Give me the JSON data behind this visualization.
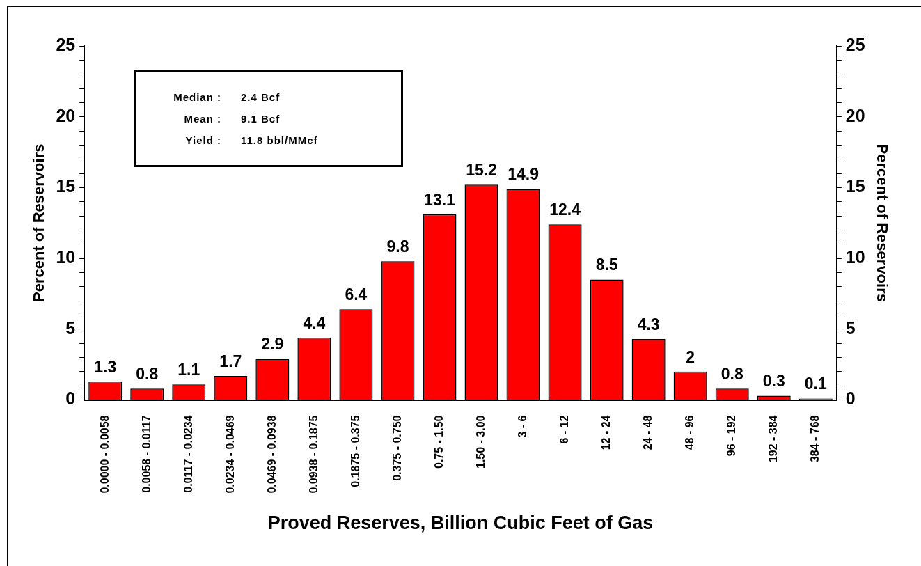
{
  "chart_data": {
    "type": "bar",
    "categories": [
      "0.0000 - 0.0058",
      "0.0058 - 0.0117",
      "0.0117 - 0.0234",
      "0.0234 - 0.0469",
      "0.0469 - 0.0938",
      "0.0938 - 0.1875",
      "0.1875 - 0.375",
      "0.375 - 0.750",
      "0.75 - 1.50",
      "1.50 - 3.00",
      "3 - 6",
      "6 - 12",
      "12 - 24",
      "24 - 48",
      "48 - 96",
      "96 - 192",
      "192 - 384",
      "384 - 768"
    ],
    "values": [
      1.3,
      0.8,
      1.1,
      1.7,
      2.9,
      4.4,
      6.4,
      9.8,
      13.1,
      15.2,
      14.9,
      12.4,
      8.5,
      4.3,
      2,
      0.8,
      0.3,
      0.1
    ],
    "color": "#ff0000",
    "data_labels": true,
    "xlabel": "Proved Reserves, Billion Cubic Feet of Gas",
    "ylabel": "Percent of Reservoirs",
    "y2label": "Percent of Reservoirs",
    "ylim": [
      0,
      25
    ],
    "yticks": [
      0,
      {
        "value": 1,
        "label": null
      },
      {
        "value": 2,
        "label": null
      },
      {
        "value": 3,
        "label": null
      },
      {
        "value": 4,
        "label": null
      },
      5,
      {
        "value": 6,
        "label": null
      },
      {
        "value": 7,
        "label": null
      },
      {
        "value": 8,
        "label": null
      },
      {
        "value": 9,
        "label": null
      },
      10,
      {
        "value": 11,
        "label": null
      },
      {
        "value": 12,
        "label": null
      },
      {
        "value": 13,
        "label": null
      },
      {
        "value": 14,
        "label": null
      },
      15,
      {
        "value": 16,
        "label": null
      },
      {
        "value": 17,
        "label": null
      },
      {
        "value": 18,
        "label": null
      },
      {
        "value": 19,
        "label": null
      },
      20,
      {
        "value": 21,
        "label": null
      },
      {
        "value": 22,
        "label": null
      },
      {
        "value": 23,
        "label": null
      },
      {
        "value": 24,
        "label": null
      },
      25
    ],
    "y2lim": [
      0,
      25
    ],
    "y2ticks": [
      0,
      {
        "value": 1,
        "label": null
      },
      {
        "value": 2,
        "label": null
      },
      {
        "value": 3,
        "label": null
      },
      {
        "value": 4,
        "label": null
      },
      5,
      {
        "value": 6,
        "label": null
      },
      {
        "value": 7,
        "label": null
      },
      {
        "value": 8,
        "label": null
      },
      {
        "value": 9,
        "label": null
      },
      10,
      {
        "value": 11,
        "label": null
      },
      {
        "value": 12,
        "label": null
      },
      {
        "value": 13,
        "label": null
      },
      {
        "value": 14,
        "label": null
      },
      15,
      {
        "value": 16,
        "label": null
      },
      {
        "value": 17,
        "label": null
      },
      {
        "value": 18,
        "label": null
      },
      {
        "value": 19,
        "label": null
      },
      20,
      {
        "value": 21,
        "label": null
      },
      {
        "value": 22,
        "label": null
      },
      {
        "value": 23,
        "label": null
      },
      {
        "value": 24,
        "label": null
      },
      25
    ],
    "annotations": [
      "Median :",
      "2.4 Bcf",
      "Mean :",
      "9.1 Bcf",
      "Yield :",
      "11.8 bbl/MMcf"
    ]
  }
}
